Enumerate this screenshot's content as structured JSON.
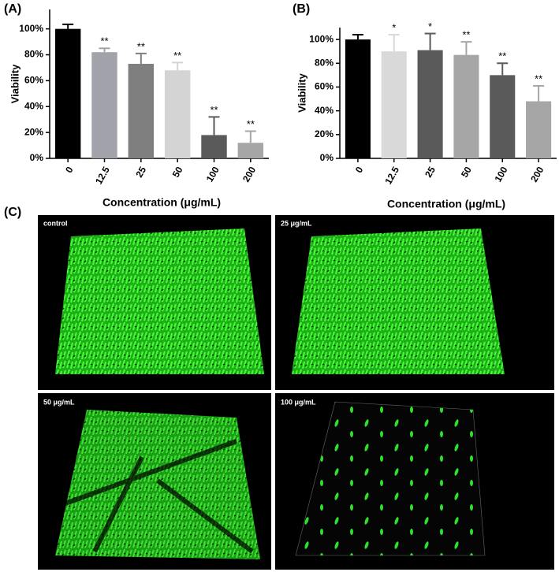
{
  "chart_data": [
    {
      "type": "bar",
      "label": "(A)",
      "x_label": "Concentration (μg/mL)",
      "y_label": "Viability",
      "categories": [
        "0",
        "12.5",
        "25",
        "50",
        "100",
        "200"
      ],
      "values": [
        100,
        82,
        73,
        68,
        18,
        12
      ],
      "errors": [
        3.5,
        3,
        8,
        6,
        14,
        9
      ],
      "annotations": [
        null,
        "**",
        "**",
        "**",
        "**",
        "**"
      ],
      "colors": [
        "#000000",
        "#a2a2aa",
        "#7f7f7f",
        "#d4d4d4",
        "#5a5a5a",
        "#a6a6a6"
      ],
      "ylim": [
        0,
        115
      ],
      "yticks": [
        {
          "value": 0,
          "label": "0%"
        },
        {
          "value": 20,
          "label": "20%"
        },
        {
          "value": 40,
          "label": "40%"
        },
        {
          "value": 60,
          "label": "60%"
        },
        {
          "value": 80,
          "label": "80%"
        },
        {
          "value": 100,
          "label": "100%"
        }
      ]
    },
    {
      "type": "bar",
      "label": "(B)",
      "x_label": "Concentration (μg/mL)",
      "y_label": "Viability",
      "categories": [
        "0",
        "12.5",
        "25",
        "50",
        "100",
        "200"
      ],
      "values": [
        100,
        90,
        91,
        87,
        70,
        48
      ],
      "errors": [
        4,
        14,
        14,
        11,
        10,
        13
      ],
      "annotations": [
        null,
        "*",
        "*",
        "**",
        "**",
        "**"
      ],
      "colors": [
        "#000000",
        "#d9d9d9",
        "#5a5a5a",
        "#a6a6a6",
        "#5a5a5a",
        "#a6a6a6"
      ],
      "ylim": [
        0,
        110
      ],
      "yticks": [
        {
          "value": 0,
          "label": "0%"
        },
        {
          "value": 20,
          "label": "20%"
        },
        {
          "value": 40,
          "label": "40%"
        },
        {
          "value": 60,
          "label": "60%"
        },
        {
          "value": 80,
          "label": "80%"
        },
        {
          "value": 100,
          "label": "100%"
        }
      ]
    }
  ],
  "panel_c": {
    "label": "(C)",
    "images": [
      "control",
      "25 μg/mL",
      "50 μg/mL",
      "100 μg/mL"
    ]
  }
}
